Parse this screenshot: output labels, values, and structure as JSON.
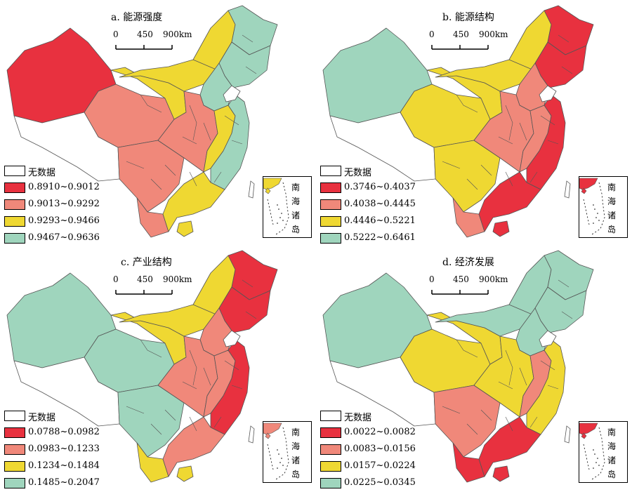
{
  "colors": {
    "red": "#e8313f",
    "salmon": "#f0887a",
    "yellow": "#efd832",
    "teal": "#9fd5bd",
    "none": "#ffffff",
    "border": "#555555"
  },
  "scale": {
    "t0": "0",
    "t1": "450",
    "t2": "900km"
  },
  "inset_labels": [
    "南",
    "海",
    "诸",
    "岛"
  ],
  "nodata_label": "无数据",
  "panels": [
    {
      "title": "a. 能源强度",
      "legend": [
        "0.8910~0.9012",
        "0.9013~0.9292",
        "0.9293~0.9466",
        "0.9467~0.9636"
      ],
      "regions": {
        "xinjiang": 0,
        "tibet": -1,
        "qinghai": 1,
        "sw": 1,
        "gansu": 2,
        "nmg_w": 2,
        "nmg_e": 2,
        "dongbei_s": 3,
        "dongbei_n": 3,
        "ne_hub": 3,
        "central": 1,
        "east_mid": 2,
        "east_coast": 3,
        "south": 2,
        "ynsouth": 1,
        "hainan": 2,
        "inset": 2
      }
    },
    {
      "title": "b. 能源结构",
      "legend": [
        "0.3746~0.4037",
        "0.4038~0.4445",
        "0.4446~0.5221",
        "0.5222~0.6461"
      ],
      "regions": {
        "xinjiang": 3,
        "tibet": -1,
        "qinghai": 2,
        "sw": 2,
        "gansu": 2,
        "nmg_w": 2,
        "nmg_e": 2,
        "dongbei_s": 0,
        "dongbei_n": 0,
        "ne_hub": 1,
        "central": 1,
        "east_mid": 1,
        "east_coast": 0,
        "south": 0,
        "ynsouth": 1,
        "hainan": 0,
        "inset": 0
      }
    },
    {
      "title": "c. 产业结构",
      "legend": [
        "0.0788~0.0982",
        "0.0983~0.1233",
        "0.1234~0.1484",
        "0.1485~0.2047"
      ],
      "regions": {
        "xinjiang": 3,
        "tibet": -1,
        "qinghai": 3,
        "sw": 3,
        "gansu": 2,
        "nmg_w": 2,
        "nmg_e": 2,
        "dongbei_s": 0,
        "dongbei_n": 0,
        "ne_hub": 1,
        "central": 1,
        "east_mid": 1,
        "east_coast": 0,
        "south": 1,
        "ynsouth": 2,
        "hainan": 2,
        "inset": 1
      }
    },
    {
      "title": "d. 经济发展",
      "legend": [
        "0.0022~0.0082",
        "0.0083~0.0156",
        "0.0157~0.0224",
        "0.0225~0.0345"
      ],
      "regions": {
        "xinjiang": 3,
        "tibet": -1,
        "qinghai": 2,
        "sw": 1,
        "gansu": 2,
        "nmg_w": 3,
        "nmg_e": 3,
        "dongbei_s": 3,
        "dongbei_n": 3,
        "ne_hub": 3,
        "central": 2,
        "east_mid": 1,
        "east_coast": 2,
        "south": 0,
        "ynsouth": 0,
        "hainan": 0,
        "inset": 0
      }
    }
  ]
}
